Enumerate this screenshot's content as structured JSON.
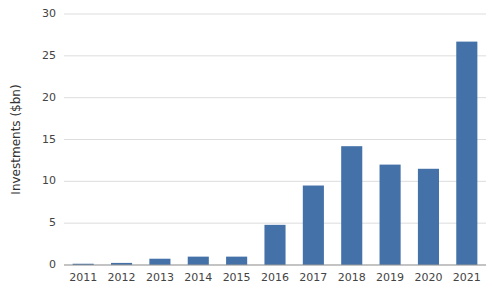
{
  "chart_data": {
    "type": "bar",
    "categories": [
      "2011",
      "2012",
      "2013",
      "2014",
      "2015",
      "2016",
      "2017",
      "2018",
      "2019",
      "2020",
      "2021"
    ],
    "values": [
      0.15,
      0.25,
      0.75,
      1.0,
      1.0,
      4.8,
      9.5,
      14.2,
      12.0,
      11.5,
      26.7
    ],
    "color": "#4472a8",
    "ylabel": "Investments ($bn)",
    "ylim": [
      0,
      30
    ],
    "yticks": [
      0,
      5,
      10,
      15,
      20,
      25,
      30
    ],
    "grid": true
  }
}
